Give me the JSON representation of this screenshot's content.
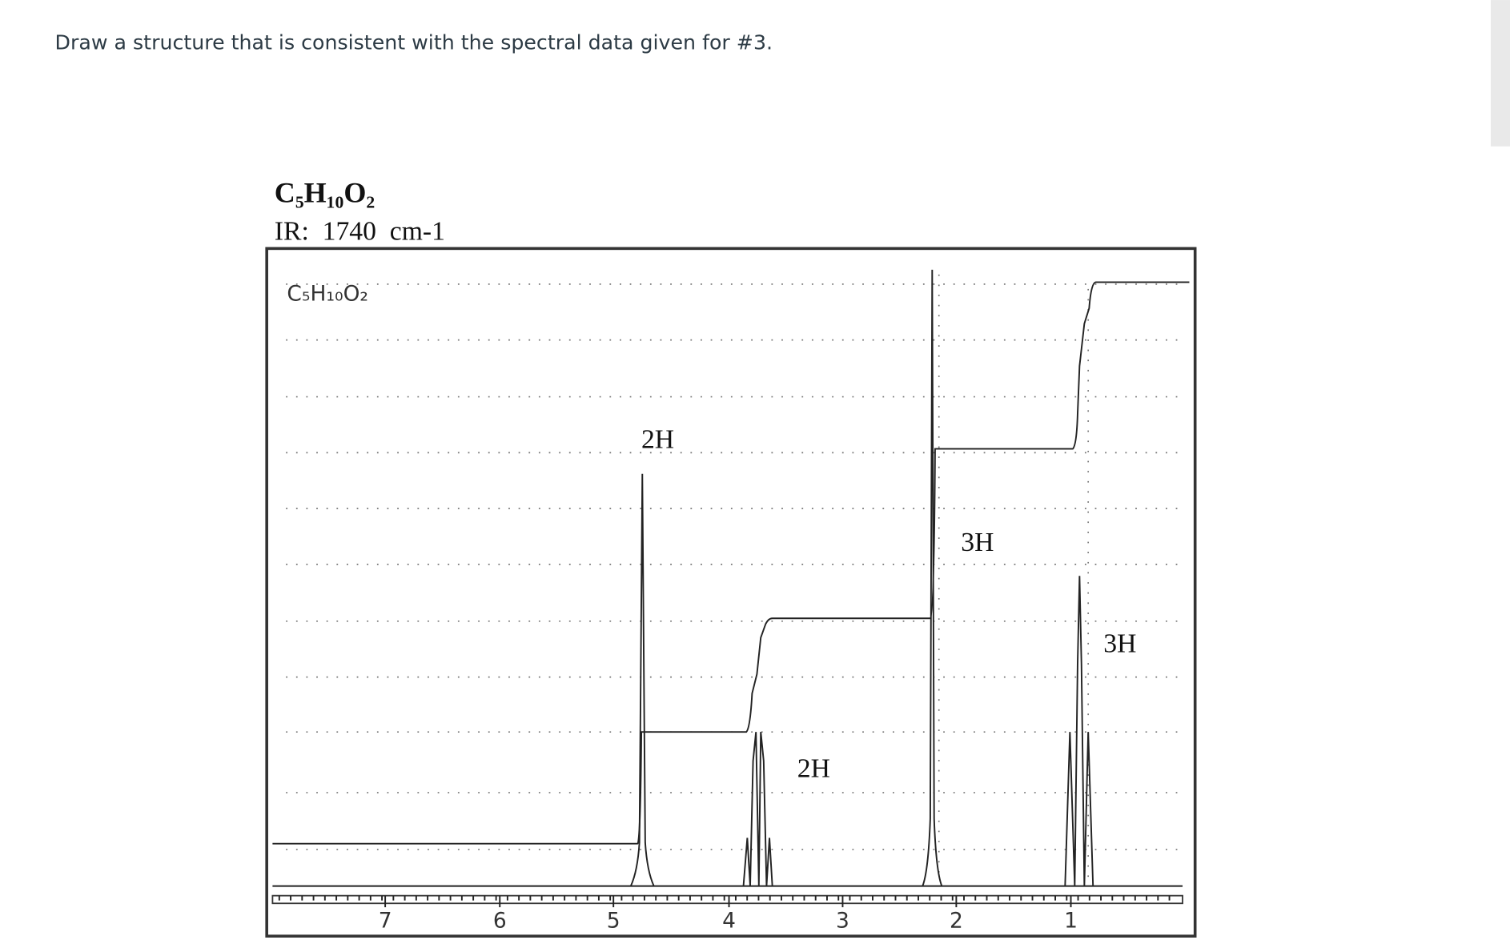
{
  "question": "Draw a structure that is consistent with the spectral data given for #3.",
  "formula": "C₅H₁₀O₂",
  "ir": "IR:  1740  cm-1",
  "spectrum": {
    "formula": "C₅H₁₀O₂",
    "integrations": [
      "2H",
      "3H",
      "3H",
      "2H"
    ],
    "axis_labels": [
      7,
      6,
      5,
      4,
      3,
      2,
      1
    ]
  }
}
